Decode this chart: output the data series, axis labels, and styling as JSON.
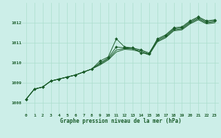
{
  "title": "Graphe pression niveau de la mer (hPa)",
  "background_color": "#cceee8",
  "grid_color": "#aaddcc",
  "line_color": "#1a5c2a",
  "xlim": [
    -0.5,
    23.5
  ],
  "ylim": [
    1007.5,
    1013.0
  ],
  "xticks": [
    0,
    1,
    2,
    3,
    4,
    5,
    6,
    7,
    8,
    9,
    10,
    11,
    12,
    13,
    14,
    15,
    16,
    17,
    18,
    19,
    20,
    21,
    22,
    23
  ],
  "yticks": [
    1008,
    1009,
    1010,
    1011,
    1012
  ],
  "series1": [
    1008.2,
    1008.7,
    1008.8,
    1009.1,
    1009.2,
    1009.3,
    1009.4,
    1009.55,
    1009.7,
    1010.1,
    1010.3,
    1011.2,
    1010.8,
    1010.75,
    1010.5,
    1010.45,
    1011.2,
    1011.4,
    1011.75,
    1011.8,
    1012.1,
    1012.3,
    1012.1,
    1012.15
  ],
  "series2": [
    1008.2,
    1008.7,
    1008.8,
    1009.1,
    1009.2,
    1009.3,
    1009.4,
    1009.55,
    1009.7,
    1010.0,
    1010.25,
    1010.8,
    1010.75,
    1010.75,
    1010.65,
    1010.5,
    1011.15,
    1011.35,
    1011.7,
    1011.75,
    1012.05,
    1012.25,
    1012.05,
    1012.1
  ],
  "series3": [
    1008.2,
    1008.7,
    1008.8,
    1009.1,
    1009.2,
    1009.3,
    1009.4,
    1009.55,
    1009.7,
    1009.95,
    1010.2,
    1010.65,
    1010.72,
    1010.7,
    1010.6,
    1010.45,
    1011.1,
    1011.3,
    1011.65,
    1011.7,
    1012.0,
    1012.2,
    1012.0,
    1012.05
  ],
  "series4": [
    1008.2,
    1008.7,
    1008.8,
    1009.1,
    1009.2,
    1009.3,
    1009.4,
    1009.55,
    1009.7,
    1009.9,
    1010.15,
    1010.55,
    1010.68,
    1010.65,
    1010.55,
    1010.4,
    1011.05,
    1011.25,
    1011.6,
    1011.65,
    1011.95,
    1012.15,
    1011.95,
    1012.0
  ]
}
